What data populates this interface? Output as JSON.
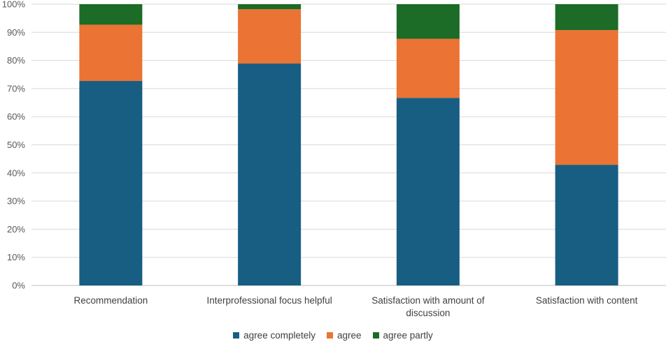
{
  "chart_data": {
    "type": "bar",
    "stacked": true,
    "percent": true,
    "categories": [
      "Recommendation",
      "Interprofessional focus helpful",
      "Satisfaction with amount of discussion",
      "Satisfaction with content"
    ],
    "series": [
      {
        "name": "agree completely",
        "color": "#175E82",
        "values": [
          72.7,
          78.9,
          66.7,
          42.9
        ]
      },
      {
        "name": "agree",
        "color": "#EB7333",
        "values": [
          20.0,
          19.3,
          21.0,
          47.9
        ]
      },
      {
        "name": "agree partly",
        "color": "#1C6B26",
        "values": [
          7.3,
          1.8,
          12.3,
          9.2
        ]
      }
    ],
    "yticks": [
      "0%",
      "10%",
      "20%",
      "30%",
      "40%",
      "50%",
      "60%",
      "70%",
      "80%",
      "90%",
      "100%"
    ],
    "ylim": [
      0,
      100
    ],
    "grid": true,
    "legend_position": "bottom"
  }
}
